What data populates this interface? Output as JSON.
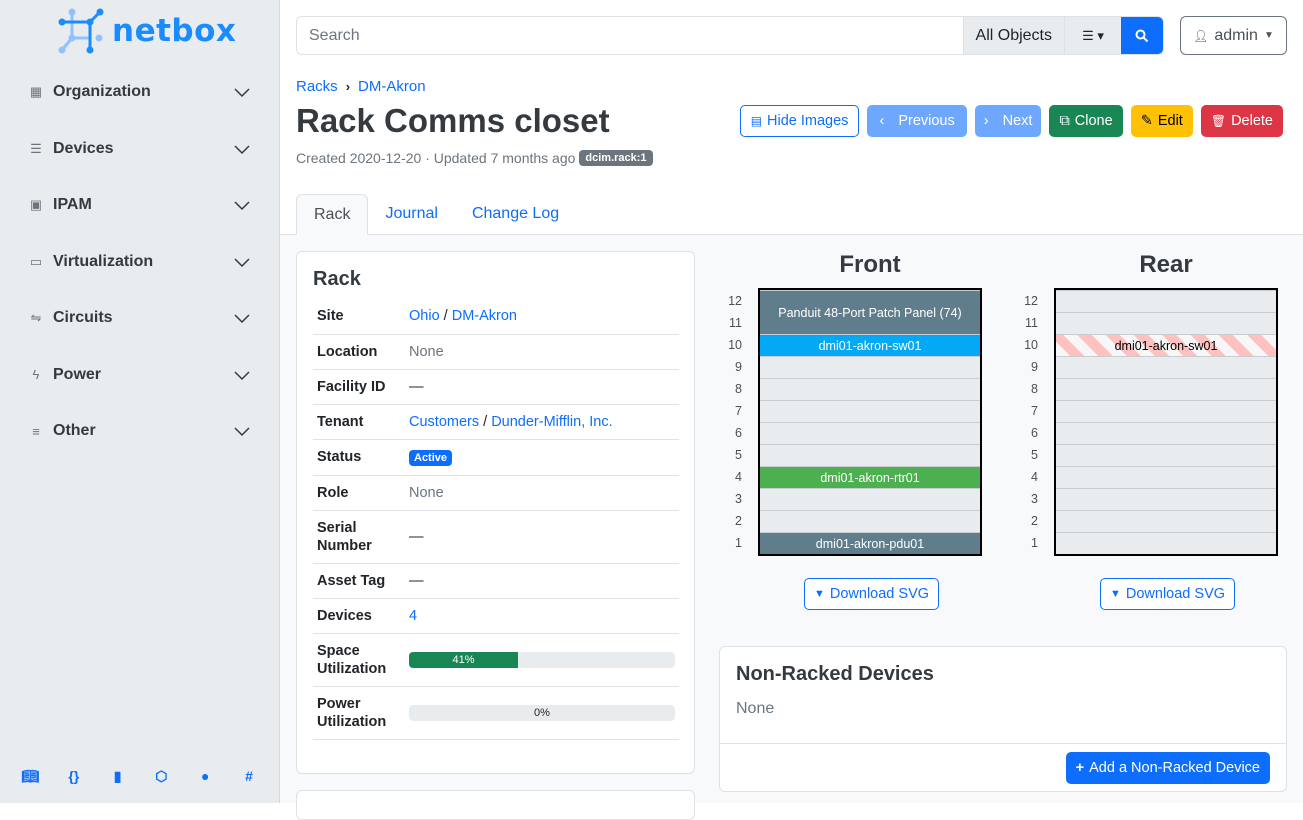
{
  "brand": "netbox",
  "sidebar": {
    "items": [
      {
        "label": "Organization",
        "icon": "domain-icon"
      },
      {
        "label": "Devices",
        "icon": "server-icon"
      },
      {
        "label": "IPAM",
        "icon": "counter-icon"
      },
      {
        "label": "Virtualization",
        "icon": "monitor-icon"
      },
      {
        "label": "Circuits",
        "icon": "transit-icon"
      },
      {
        "label": "Power",
        "icon": "flash-icon"
      },
      {
        "label": "Other",
        "icon": "notes-icon"
      }
    ],
    "footer": [
      "book-icon",
      "api-icon",
      "docs-icon",
      "graphql-icon",
      "github-icon",
      "slack-icon"
    ]
  },
  "search": {
    "placeholder": "Search",
    "scope": "All Objects"
  },
  "user": {
    "name": "admin"
  },
  "breadcrumb": [
    "Racks",
    "DM-Akron"
  ],
  "title": "Rack Comms closet",
  "meta": {
    "text": "Created 2020-12-20 · Updated 7 months ago",
    "tag": "dcim.rack:1"
  },
  "actions": {
    "hide_images": "Hide Images",
    "previous": "Previous",
    "next": "Next",
    "clone": "Clone",
    "edit": "Edit",
    "delete": "Delete"
  },
  "tabs": [
    "Rack",
    "Journal",
    "Change Log"
  ],
  "rack_card": {
    "title": "Rack",
    "rows": {
      "site": {
        "label": "Site",
        "a": "Ohio",
        "b": "DM-Akron"
      },
      "location": {
        "label": "Location",
        "value": "None"
      },
      "facility": {
        "label": "Facility ID",
        "value": "—"
      },
      "tenant": {
        "label": "Tenant",
        "a": "Customers",
        "b": "Dunder-Mifflin, Inc."
      },
      "status": {
        "label": "Status",
        "value": "Active"
      },
      "role": {
        "label": "Role",
        "value": "None"
      },
      "serial": {
        "label": "Serial Number",
        "value": "—"
      },
      "asset": {
        "label": "Asset Tag",
        "value": "—"
      },
      "devices": {
        "label": "Devices",
        "value": "4"
      },
      "space": {
        "label": "Space Utilization",
        "value": "41%",
        "percent": 41
      },
      "power": {
        "label": "Power Utilization",
        "value": "0%",
        "percent": 0
      }
    }
  },
  "elevations": {
    "front_title": "Front",
    "rear_title": "Rear",
    "download": "Download SVG",
    "units": [
      12,
      11,
      10,
      9,
      8,
      7,
      6,
      5,
      4,
      3,
      2,
      1
    ],
    "front": [
      {
        "name": "Panduit 48-Port Patch Panel (74)",
        "top": 12,
        "height": 2,
        "color": "#607d8b"
      },
      {
        "name": "dmi01-akron-sw01",
        "top": 10,
        "height": 1,
        "color": "#03a9f4"
      },
      {
        "name": "dmi01-akron-rtr01",
        "top": 4,
        "height": 1,
        "color": "#4caf50"
      },
      {
        "name": "dmi01-akron-pdu01",
        "top": 1,
        "height": 1,
        "color": "#607d8b"
      }
    ],
    "rear": [
      {
        "name": "dmi01-akron-sw01",
        "top": 10,
        "height": 1,
        "color": "striped"
      }
    ]
  },
  "nonracked": {
    "title": "Non-Racked Devices",
    "value": "None",
    "add": "Add a Non-Racked Device"
  }
}
